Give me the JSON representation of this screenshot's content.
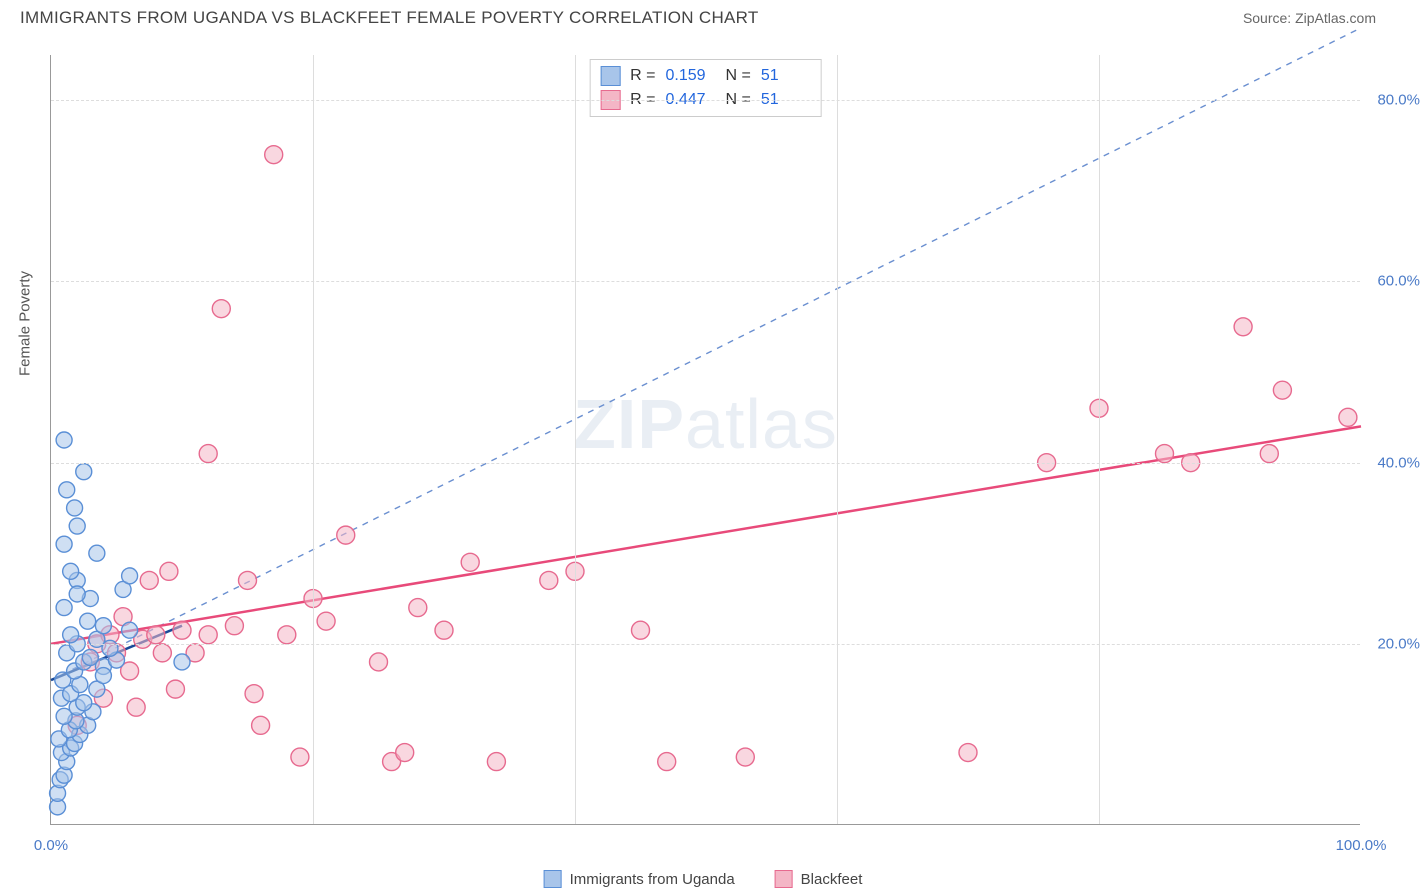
{
  "header": {
    "title": "IMMIGRANTS FROM UGANDA VS BLACKFEET FEMALE POVERTY CORRELATION CHART",
    "source_label": "Source:",
    "source_value": "ZipAtlas.com"
  },
  "axes": {
    "y_title": "Female Poverty",
    "x_min": 0,
    "x_max": 100,
    "y_min": 0,
    "y_max": 85,
    "y_ticks": [
      {
        "v": 20,
        "label": "20.0%"
      },
      {
        "v": 40,
        "label": "40.0%"
      },
      {
        "v": 60,
        "label": "60.0%"
      },
      {
        "v": 80,
        "label": "80.0%"
      }
    ],
    "x_ticks": [
      {
        "v": 0,
        "label": "0.0%"
      },
      {
        "v": 100,
        "label": "100.0%"
      }
    ],
    "x_vgrid": [
      20,
      40,
      60,
      80
    ],
    "tick_color": "#4a7ac7",
    "grid_color": "#dddddd"
  },
  "series": {
    "uganda": {
      "label": "Immigrants from Uganda",
      "fill": "#a8c5ea",
      "stroke": "#5a8fd6",
      "fill_opacity": 0.55,
      "marker_r": 8,
      "R": "0.159",
      "N": "51",
      "trend": {
        "x1": 0,
        "y1": 16,
        "x2": 10,
        "y2": 22,
        "color": "#1a4a99",
        "width": 2.5
      },
      "ref_line": {
        "x1": 0,
        "y1": 16,
        "x2": 100,
        "y2": 88,
        "color": "#6a8fd0",
        "width": 1.4,
        "dash": "6 6"
      },
      "points": [
        [
          0.5,
          2
        ],
        [
          0.5,
          3.5
        ],
        [
          0.7,
          5
        ],
        [
          1,
          5.5
        ],
        [
          1.2,
          7
        ],
        [
          0.8,
          8
        ],
        [
          1.5,
          8.5
        ],
        [
          1.8,
          9
        ],
        [
          0.6,
          9.5
        ],
        [
          2.2,
          10
        ],
        [
          1.4,
          10.5
        ],
        [
          2.8,
          11
        ],
        [
          1.9,
          11.5
        ],
        [
          1,
          12
        ],
        [
          3.2,
          12.5
        ],
        [
          2,
          13
        ],
        [
          2.5,
          13.5
        ],
        [
          0.8,
          14
        ],
        [
          1.5,
          14.5
        ],
        [
          3.5,
          15
        ],
        [
          2.2,
          15.5
        ],
        [
          0.9,
          16
        ],
        [
          1.8,
          17
        ],
        [
          4,
          17.5
        ],
        [
          2.5,
          18
        ],
        [
          3,
          18.5
        ],
        [
          5,
          18.2
        ],
        [
          1.2,
          19
        ],
        [
          10,
          18
        ],
        [
          4.5,
          19.5
        ],
        [
          2,
          20
        ],
        [
          3.5,
          20.5
        ],
        [
          1.5,
          21
        ],
        [
          6,
          21.5
        ],
        [
          4,
          22
        ],
        [
          2.8,
          22.5
        ],
        [
          1,
          24
        ],
        [
          3,
          25
        ],
        [
          5.5,
          26
        ],
        [
          2,
          27
        ],
        [
          6,
          27.5
        ],
        [
          1.5,
          28
        ],
        [
          3.5,
          30
        ],
        [
          1,
          31
        ],
        [
          2,
          33
        ],
        [
          1.8,
          35
        ],
        [
          1.2,
          37
        ],
        [
          2.5,
          39
        ],
        [
          1,
          42.5
        ],
        [
          2,
          25.5
        ],
        [
          4,
          16.5
        ]
      ]
    },
    "blackfeet": {
      "label": "Blackfeet",
      "fill": "#f4b6c6",
      "stroke": "#e76a8f",
      "fill_opacity": 0.55,
      "marker_r": 9,
      "R": "0.447",
      "N": "51",
      "trend": {
        "x1": 0,
        "y1": 20,
        "x2": 100,
        "y2": 44,
        "color": "#e84a7a",
        "width": 2.5
      },
      "points": [
        [
          2,
          11
        ],
        [
          3,
          18
        ],
        [
          3.5,
          20
        ],
        [
          4,
          14
        ],
        [
          4.5,
          21
        ],
        [
          5,
          19
        ],
        [
          5.5,
          23
        ],
        [
          6,
          17
        ],
        [
          7,
          20.5
        ],
        [
          7.5,
          27
        ],
        [
          8,
          21
        ],
        [
          9,
          28
        ],
        [
          9.5,
          15
        ],
        [
          10,
          21.5
        ],
        [
          11,
          19
        ],
        [
          12,
          41
        ],
        [
          13,
          57
        ],
        [
          14,
          22
        ],
        [
          15,
          27
        ],
        [
          15.5,
          14.5
        ],
        [
          16,
          11
        ],
        [
          17,
          74
        ],
        [
          18,
          21
        ],
        [
          19,
          7.5
        ],
        [
          20,
          25
        ],
        [
          21,
          22.5
        ],
        [
          22.5,
          32
        ],
        [
          25,
          18
        ],
        [
          26,
          7
        ],
        [
          27,
          8
        ],
        [
          28,
          24
        ],
        [
          30,
          21.5
        ],
        [
          32,
          29
        ],
        [
          34,
          7
        ],
        [
          38,
          27
        ],
        [
          40,
          28
        ],
        [
          45,
          21.5
        ],
        [
          47,
          7
        ],
        [
          53,
          7.5
        ],
        [
          70,
          8
        ],
        [
          76,
          40
        ],
        [
          80,
          46
        ],
        [
          85,
          41
        ],
        [
          87,
          40
        ],
        [
          91,
          55
        ],
        [
          93,
          41
        ],
        [
          94,
          48
        ],
        [
          99,
          45
        ],
        [
          12,
          21
        ],
        [
          6.5,
          13
        ],
        [
          8.5,
          19
        ]
      ]
    }
  },
  "watermark": {
    "bold": "ZIP",
    "rest": "atlas"
  }
}
